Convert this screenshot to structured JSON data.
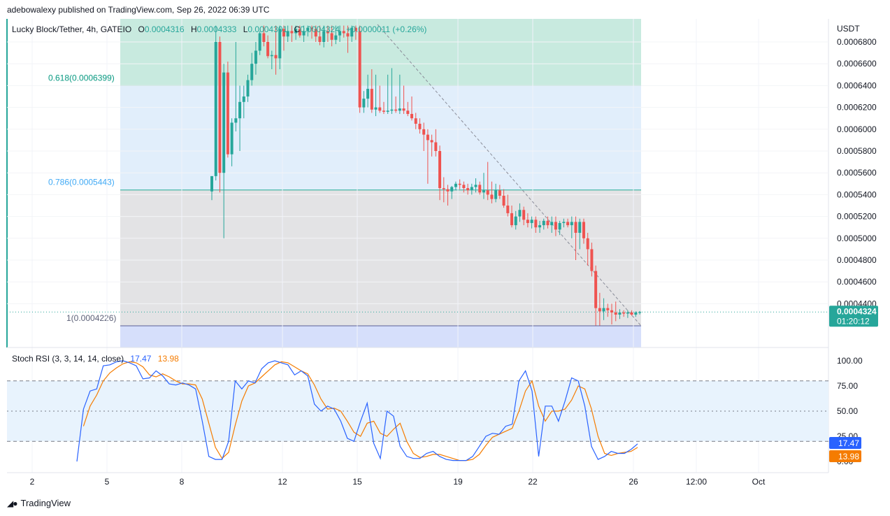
{
  "header": {
    "published": "adebowalexy published on TradingView.com, Sep 26, 2022 06:39 UTC"
  },
  "legend": {
    "symbol": "Lucky Block/Tether, 4h, GATEIO",
    "open_label": "O",
    "open": "0.0004316",
    "high_label": "H",
    "high": "0.0004333",
    "low_label": "L",
    "low": "0.0004301",
    "close_label": "C",
    "close": "0.0004324",
    "change": "+0.0000011 (+0.26%)"
  },
  "price_axis": {
    "currency": "USDT",
    "ticks": [
      "0.0006800",
      "0.0006600",
      "0.0006400",
      "0.0006200",
      "0.0006000",
      "0.0005800",
      "0.0005600",
      "0.0005400",
      "0.0005200",
      "0.0005000",
      "0.0004800",
      "0.0004600",
      "0.0004400"
    ],
    "last_price": "0.0004324",
    "countdown": "01:20:12"
  },
  "fib": {
    "l0618": "0.618(0.0006399)",
    "l0786": "0.786(0.0005443)",
    "l1": "1(0.0004226)"
  },
  "rsi": {
    "title": "Stoch RSI (3, 3, 14, 14, close)",
    "k_value": "17.47",
    "d_value": "13.98",
    "ticks": [
      "100.00",
      "75.00",
      "50.00",
      "25.00",
      "0.00"
    ]
  },
  "time_axis": [
    "2",
    "5",
    "8",
    "12",
    "15",
    "19",
    "22",
    "26",
    "12:00",
    "Oct"
  ],
  "footer": {
    "brand": "TradingView"
  },
  "colors": {
    "up": "#26a69a",
    "down": "#ef5350",
    "fib_green": "#c8eadf",
    "fib_blue": "#e1eefb",
    "fib_grey": "#e3e3e5",
    "fib_lavender": "#d6dffb",
    "k_line": "#2962ff",
    "d_line": "#f57c00",
    "band": "#e8f3fd"
  },
  "chart_data": {
    "type": "candlestick",
    "price_range": [
      0.00041,
      0.00069
    ],
    "fib_levels": [
      {
        "ratio": 0.618,
        "price": 0.0006399
      },
      {
        "ratio": 0.786,
        "price": 0.0005443
      },
      {
        "ratio": 1,
        "price": 0.0004226
      }
    ],
    "candles_ohlc": [
      [
        0.000543,
        0.000557,
        0.000535,
        0.000557
      ],
      [
        0.000557,
        0.000695,
        0.000553,
        0.00068
      ],
      [
        0.00068,
        0.000685,
        0.000542,
        0.00056
      ],
      [
        0.00056,
        0.00066,
        0.0005,
        0.000652
      ],
      [
        0.000652,
        0.000662,
        0.000574,
        0.000577
      ],
      [
        0.000577,
        0.00061,
        0.000566,
        0.000606
      ],
      [
        0.000606,
        0.00068,
        0.000598,
        0.00061
      ],
      [
        0.00061,
        0.00064,
        0.00058,
        0.000625
      ],
      [
        0.000625,
        0.00064,
        0.00061,
        0.00063
      ],
      [
        0.00063,
        0.00065,
        0.000625,
        0.000645
      ],
      [
        0.000645,
        0.00067,
        0.00064,
        0.00066
      ],
      [
        0.00066,
        0.00068,
        0.00065,
        0.000672
      ],
      [
        0.000672,
        0.00069,
        0.000668,
        0.000688
      ],
      [
        0.000688,
        0.000695,
        0.000676,
        0.00068
      ],
      [
        0.00068,
        0.000686,
        0.000665,
        0.000667
      ],
      [
        0.000667,
        0.000672,
        0.000655,
        0.000668
      ],
      [
        0.000668,
        0.000695,
        0.00065,
        0.000665
      ],
      [
        0.000665,
        0.000695,
        0.000655,
        0.000692
      ],
      [
        0.000692,
        0.000695,
        0.000672,
        0.000685
      ],
      [
        0.000685,
        0.000695,
        0.00068,
        0.00069
      ],
      [
        0.00069,
        0.000695,
        0.00068,
        0.000688
      ],
      [
        0.000688,
        0.000695,
        0.000682,
        0.000692
      ],
      [
        0.000692,
        0.000695,
        0.000684,
        0.000686
      ],
      [
        0.000686,
        0.000695,
        0.00068,
        0.00069
      ],
      [
        0.00069,
        0.000695,
        0.000685,
        0.000693
      ],
      [
        0.000693,
        0.000695,
        0.000683,
        0.000692
      ],
      [
        0.000692,
        0.000695,
        0.00068,
        0.000685
      ],
      [
        0.000685,
        0.000695,
        0.000677,
        0.00068
      ],
      [
        0.00068,
        0.000695,
        0.000675,
        0.00069
      ],
      [
        0.00069,
        0.000695,
        0.00068,
        0.000688
      ],
      [
        0.000688,
        0.000695,
        0.000676,
        0.000682
      ],
      [
        0.000682,
        0.000695,
        0.000678,
        0.000686
      ],
      [
        0.000686,
        0.000695,
        0.00068,
        0.00069
      ],
      [
        0.00069,
        0.000695,
        0.000684,
        0.000688
      ],
      [
        0.000688,
        0.000695,
        0.00067,
        0.000685
      ],
      [
        0.000685,
        0.000695,
        0.00068,
        0.000693
      ],
      [
        0.000693,
        0.000695,
        0.000682,
        0.00069
      ],
      [
        0.00069,
        0.000695,
        0.000615,
        0.00062
      ],
      [
        0.00062,
        0.000635,
        0.000615,
        0.000628
      ],
      [
        0.000628,
        0.00065,
        0.00062,
        0.000637
      ],
      [
        0.000637,
        0.000655,
        0.000615,
        0.000618
      ],
      [
        0.000618,
        0.00065,
        0.000612,
        0.00062
      ],
      [
        0.00062,
        0.00064,
        0.000615,
        0.000617
      ],
      [
        0.000617,
        0.000625,
        0.000614,
        0.000616
      ],
      [
        0.000616,
        0.00065,
        0.000614,
        0.000617
      ],
      [
        0.000617,
        0.000656,
        0.000614,
        0.000618
      ],
      [
        0.000618,
        0.00063,
        0.000615,
        0.000617
      ],
      [
        0.000617,
        0.00065,
        0.000614,
        0.000619
      ],
      [
        0.000619,
        0.00064,
        0.000614,
        0.000617
      ],
      [
        0.000617,
        0.000625,
        0.000612,
        0.000614
      ],
      [
        0.000614,
        0.00063,
        0.000608,
        0.00061
      ],
      [
        0.00061,
        0.000615,
        0.0006,
        0.000605
      ],
      [
        0.000605,
        0.00061,
        0.000596,
        0.0006
      ],
      [
        0.0006,
        0.000606,
        0.00058,
        0.000595
      ],
      [
        0.000595,
        0.0006,
        0.00055,
        0.00059
      ],
      [
        0.00059,
        0.000595,
        0.000575,
        0.000588
      ],
      [
        0.000588,
        0.0006,
        0.000575,
        0.00058
      ],
      [
        0.00058,
        0.000585,
        0.000535,
        0.000546
      ],
      [
        0.000546,
        0.000556,
        0.000533,
        0.000545
      ],
      [
        0.000545,
        0.000549,
        0.00053,
        0.000543
      ],
      [
        0.000543,
        0.000548,
        0.000536,
        0.000547
      ],
      [
        0.000547,
        0.000552,
        0.000544,
        0.00055
      ],
      [
        0.00055,
        0.000554,
        0.000545,
        0.000549
      ],
      [
        0.000549,
        0.000552,
        0.000542,
        0.000546
      ],
      [
        0.000546,
        0.00055,
        0.00054,
        0.000544
      ],
      [
        0.000544,
        0.00055,
        0.00054,
        0.000547
      ],
      [
        0.000547,
        0.000555,
        0.000542,
        0.000549
      ],
      [
        0.000549,
        0.000552,
        0.00054,
        0.000542
      ],
      [
        0.000542,
        0.00056,
        0.000536,
        0.000544
      ],
      [
        0.000544,
        0.00057,
        0.000535,
        0.00054
      ],
      [
        0.00054,
        0.000552,
        0.000532,
        0.000536
      ],
      [
        0.000536,
        0.00055,
        0.000533,
        0.000544
      ],
      [
        0.000544,
        0.000549,
        0.000536,
        0.000539
      ],
      [
        0.000539,
        0.000545,
        0.000528,
        0.00053
      ],
      [
        0.00053,
        0.00054,
        0.00052,
        0.000523
      ],
      [
        0.000523,
        0.00053,
        0.00051,
        0.000512
      ],
      [
        0.000512,
        0.000525,
        0.000508,
        0.00052
      ],
      [
        0.00052,
        0.000532,
        0.000515,
        0.000526
      ],
      [
        0.000526,
        0.000529,
        0.000512,
        0.000517
      ],
      [
        0.000517,
        0.000523,
        0.00051,
        0.000514
      ],
      [
        0.000514,
        0.00052,
        0.000509,
        0.000517
      ],
      [
        0.000517,
        0.00052,
        0.000505,
        0.00051
      ],
      [
        0.00051,
        0.000516,
        0.000505,
        0.000512
      ],
      [
        0.000512,
        0.000518,
        0.000508,
        0.000516
      ],
      [
        0.000516,
        0.00052,
        0.000509,
        0.000512
      ],
      [
        0.000512,
        0.00052,
        0.000505,
        0.000515
      ],
      [
        0.000515,
        0.00052,
        0.000502,
        0.000508
      ],
      [
        0.000508,
        0.000516,
        0.000503,
        0.000514
      ],
      [
        0.000514,
        0.000518,
        0.00051,
        0.000515
      ],
      [
        0.000515,
        0.000518,
        0.00051,
        0.000512
      ],
      [
        0.000512,
        0.00052,
        0.0005,
        0.000515
      ],
      [
        0.000515,
        0.00052,
        0.00048,
        0.000505
      ],
      [
        0.000505,
        0.000518,
        0.00049,
        0.000515
      ],
      [
        0.000515,
        0.000518,
        0.000495,
        0.0005
      ],
      [
        0.0005,
        0.000505,
        0.000475,
        0.00049
      ],
      [
        0.00049,
        0.000496,
        0.000465,
        0.00047
      ],
      [
        0.00047,
        0.000475,
        0.00042,
        0.000436
      ],
      [
        0.000436,
        0.00045,
        0.00042,
        0.000433
      ],
      [
        0.000433,
        0.000445,
        0.000425,
        0.000436
      ],
      [
        0.000436,
        0.00044,
        0.000428,
        0.000434
      ],
      [
        0.000434,
        0.00044,
        0.000421,
        0.000432
      ],
      [
        0.000432,
        0.000442,
        0.000424,
        0.00043
      ],
      [
        0.00043,
        0.000435,
        0.000426,
        0.000432
      ],
      [
        0.000432,
        0.000434,
        0.000428,
        0.000431
      ],
      [
        0.000431,
        0.000434,
        0.000427,
        0.000432
      ],
      [
        0.000432,
        0.000434,
        0.000429,
        0.00043
      ],
      [
        0.00043,
        0.000433,
        0.000428,
        0.000432
      ],
      [
        0.0004316,
        0.0004333,
        0.0004301,
        0.0004324
      ]
    ],
    "stoch_k": [
      0,
      52,
      70,
      72,
      95,
      96,
      99,
      100,
      98,
      95,
      82,
      83,
      90,
      85,
      77,
      76,
      78,
      76,
      72,
      40,
      5,
      2,
      2,
      20,
      80,
      72,
      80,
      78,
      92,
      98,
      100,
      98,
      96,
      86,
      90,
      85,
      57,
      50,
      55,
      52,
      40,
      23,
      20,
      40,
      58,
      18,
      3,
      50,
      45,
      15,
      5,
      3,
      3,
      8,
      10,
      5,
      2,
      1,
      1,
      1,
      5,
      15,
      25,
      28,
      27,
      35,
      37,
      80,
      90,
      70,
      5,
      55,
      55,
      40,
      60,
      83,
      80,
      55,
      15,
      2,
      5,
      10,
      8,
      8,
      12,
      17.47
    ],
    "stoch_d": [
      null,
      35,
      55,
      66,
      80,
      88,
      93,
      97,
      99,
      98,
      94,
      86,
      84,
      87,
      84,
      80,
      77,
      77,
      76,
      62,
      38,
      14,
      3,
      9,
      36,
      60,
      75,
      78,
      84,
      90,
      96,
      99,
      98,
      94,
      90,
      87,
      76,
      62,
      52,
      53,
      50,
      40,
      29,
      25,
      38,
      40,
      28,
      25,
      32,
      38,
      20,
      8,
      4,
      5,
      7,
      7,
      5,
      3,
      1,
      1,
      2,
      7,
      16,
      24,
      27,
      30,
      33,
      50,
      70,
      80,
      55,
      40,
      50,
      50,
      52,
      61,
      75,
      72,
      52,
      25,
      8,
      6,
      8,
      9,
      10,
      13.98
    ]
  }
}
